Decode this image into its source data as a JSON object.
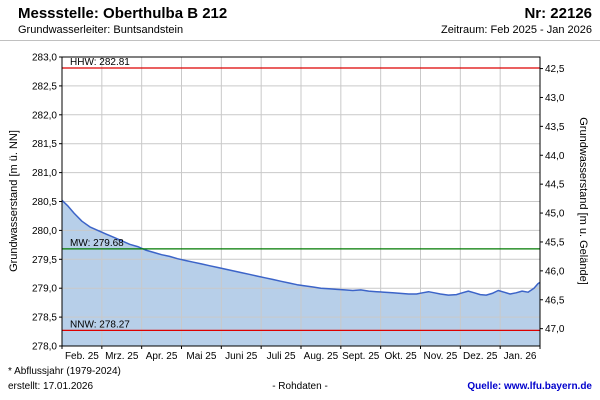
{
  "header": {
    "station_label": "Messstelle: Oberthulba B 212",
    "number_label": "Nr: 22126",
    "aquifer_label": "Grundwasserleiter: Buntsandstein",
    "period_label": "Zeitraum: Feb 2025 - Jan 2026"
  },
  "footer": {
    "footnote": "* Abflussjahr (1979-2024)",
    "created": "erstellt: 17.01.2026",
    "center_label": "- Rohdaten -",
    "source_label": "Quelle: www.lfu.bayern.de"
  },
  "chart_data": {
    "type": "area",
    "title": "",
    "ylabel_left": "Grundwasserstand [m ü. NN]",
    "ylabel_right": "Grundwasserstand [m u. Gelände]",
    "y_left_range": [
      278.0,
      283.0
    ],
    "ground_elevation_sum": 325.3,
    "grid": true,
    "line_color": "#3c64c8",
    "fill_color": "#b7cfe9",
    "y_left_ticks": [
      {
        "value": 283.0,
        "label": "283,0"
      },
      {
        "value": 282.5,
        "label": "282,5"
      },
      {
        "value": 282.0,
        "label": "282,0"
      },
      {
        "value": 281.5,
        "label": "281,5"
      },
      {
        "value": 281.0,
        "label": "281,0"
      },
      {
        "value": 280.5,
        "label": "280,5"
      },
      {
        "value": 280.0,
        "label": "280,0"
      },
      {
        "value": 279.5,
        "label": "279,5"
      },
      {
        "value": 279.0,
        "label": "279,0"
      },
      {
        "value": 278.5,
        "label": "278,5"
      },
      {
        "value": 278.0,
        "label": "278,0"
      }
    ],
    "y_right_ticks": [
      {
        "value": 42.5,
        "label": "42,5"
      },
      {
        "value": 43.0,
        "label": "43,0"
      },
      {
        "value": 43.5,
        "label": "43,5"
      },
      {
        "value": 44.0,
        "label": "44,0"
      },
      {
        "value": 44.5,
        "label": "44,5"
      },
      {
        "value": 45.0,
        "label": "45,0"
      },
      {
        "value": 45.5,
        "label": "45,5"
      },
      {
        "value": 46.0,
        "label": "46,0"
      },
      {
        "value": 46.5,
        "label": "46,5"
      },
      {
        "value": 47.0,
        "label": "47,0"
      }
    ],
    "x_tick_labels": [
      "Feb. 25",
      "Mrz. 25",
      "Apr. 25",
      "Mai 25",
      "Juni 25",
      "Juli 25",
      "Aug. 25",
      "Sept. 25",
      "Okt. 25",
      "Nov. 25",
      "Dez. 25",
      "Jan. 26"
    ],
    "reference_lines": [
      {
        "name": "HHW",
        "label": "HHW: 282.81",
        "value": 282.81,
        "color": "#dd0000"
      },
      {
        "name": "MW",
        "label": "MW: 279.68",
        "value": 279.68,
        "color": "#007a00"
      },
      {
        "name": "NNW",
        "label": "NNW: 278.27",
        "value": 278.27,
        "color": "#dd0000"
      }
    ],
    "series": [
      {
        "name": "Rohdaten",
        "points": [
          [
            0,
            280.52
          ],
          [
            0.15,
            280.42
          ],
          [
            0.3,
            280.3
          ],
          [
            0.5,
            280.16
          ],
          [
            0.7,
            280.06
          ],
          [
            0.9,
            280.0
          ],
          [
            1.1,
            279.94
          ],
          [
            1.3,
            279.88
          ],
          [
            1.5,
            279.82
          ],
          [
            1.7,
            279.76
          ],
          [
            1.9,
            279.72
          ],
          [
            2.1,
            279.66
          ],
          [
            2.3,
            279.62
          ],
          [
            2.5,
            279.58
          ],
          [
            2.7,
            279.55
          ],
          [
            2.9,
            279.51
          ],
          [
            3.1,
            279.48
          ],
          [
            3.3,
            279.45
          ],
          [
            3.5,
            279.42
          ],
          [
            3.7,
            279.39
          ],
          [
            3.9,
            279.36
          ],
          [
            4.1,
            279.33
          ],
          [
            4.3,
            279.3
          ],
          [
            4.5,
            279.27
          ],
          [
            4.7,
            279.24
          ],
          [
            4.9,
            279.21
          ],
          [
            5.1,
            279.18
          ],
          [
            5.3,
            279.15
          ],
          [
            5.5,
            279.12
          ],
          [
            5.7,
            279.09
          ],
          [
            5.9,
            279.06
          ],
          [
            6.1,
            279.04
          ],
          [
            6.3,
            279.02
          ],
          [
            6.5,
            279.0
          ],
          [
            6.7,
            278.99
          ],
          [
            6.9,
            278.98
          ],
          [
            7.1,
            278.97
          ],
          [
            7.3,
            278.96
          ],
          [
            7.5,
            278.97
          ],
          [
            7.7,
            278.95
          ],
          [
            7.9,
            278.94
          ],
          [
            8.1,
            278.93
          ],
          [
            8.3,
            278.92
          ],
          [
            8.5,
            278.91
          ],
          [
            8.7,
            278.9
          ],
          [
            8.9,
            278.9
          ],
          [
            9.05,
            278.92
          ],
          [
            9.2,
            278.94
          ],
          [
            9.35,
            278.92
          ],
          [
            9.5,
            278.9
          ],
          [
            9.7,
            278.88
          ],
          [
            9.9,
            278.89
          ],
          [
            10.05,
            278.92
          ],
          [
            10.2,
            278.95
          ],
          [
            10.35,
            278.92
          ],
          [
            10.5,
            278.89
          ],
          [
            10.65,
            278.88
          ],
          [
            10.8,
            278.91
          ],
          [
            10.95,
            278.96
          ],
          [
            11.1,
            278.93
          ],
          [
            11.25,
            278.9
          ],
          [
            11.4,
            278.92
          ],
          [
            11.55,
            278.95
          ],
          [
            11.7,
            278.93
          ],
          [
            11.85,
            279.0
          ],
          [
            11.95,
            279.08
          ],
          [
            12,
            279.1
          ]
        ]
      }
    ]
  }
}
